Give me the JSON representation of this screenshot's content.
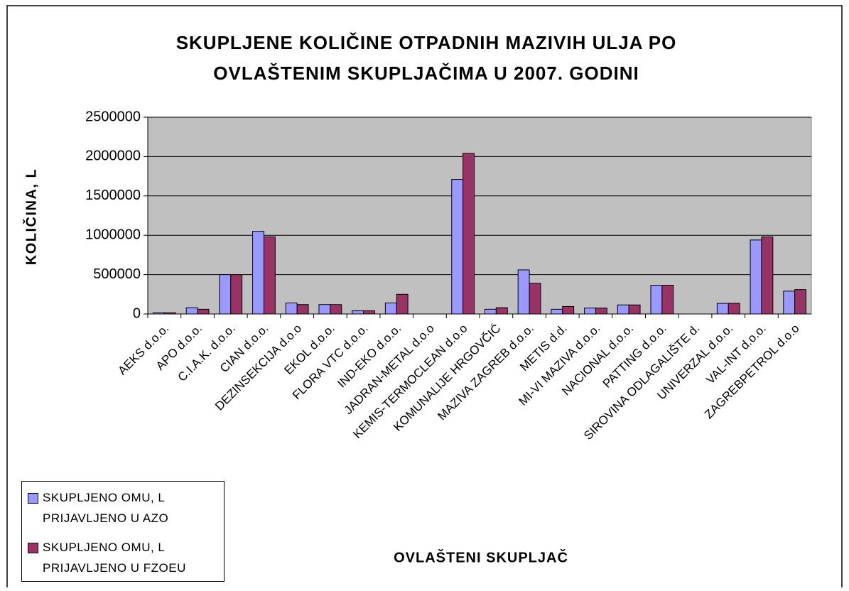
{
  "chart_data": {
    "type": "bar",
    "title": "SKUPLJENE KOLIČINE OTPADNIH MAZIVIH ULJA PO OVLAŠTENIM SKUPLJAČIMA U 2007. GODINI",
    "x_label": "OVLAŠTENI SKUPLJAČ",
    "y_label": "KOLIČINA, L",
    "categories": [
      "AEKS d.o.o.",
      "APO d.o.o.",
      "C.I.A.K. d.o.o.",
      "CIAN d.o.o.",
      "DEZINSEKCIJA d.o.o",
      "EKOL d.o.o.",
      "FLORA VTC d.o.o.",
      "IND-EKO d.o.o.",
      "JADRAN-METAL d.o.o",
      "KEMIS-TERMOCLEAN d.o.o",
      "KOMUNALIJE HRGOVČIĆ",
      "MAZIVA ZAGREB d.o.o.",
      "METIS d.d.",
      "MI-VI MAZIVA d.o.o.",
      "NACIONAL d.o.o.",
      "PATTING d.o.o.",
      "SIROVINA ODLAGALIŠTE d.",
      "UNIVERZAL d.o.o.",
      "VAL-INT d.o.o.",
      "ZAGREBPETROL d.o.o"
    ],
    "series": [
      {
        "name": "SKUPLJENO OMU, L PRIJAVLJENO U AZO",
        "color": "#9999ff",
        "values": [
          15000,
          80000,
          500000,
          1050000,
          140000,
          120000,
          40000,
          140000,
          0,
          1710000,
          60000,
          560000,
          60000,
          75000,
          115000,
          365000,
          0,
          135000,
          940000,
          290000
        ]
      },
      {
        "name": "SKUPLJENO OMU, L PRIJAVLJENO U FZOEU",
        "color": "#993366",
        "values": [
          15000,
          60000,
          500000,
          980000,
          120000,
          120000,
          40000,
          250000,
          0,
          2040000,
          80000,
          390000,
          95000,
          75000,
          115000,
          365000,
          0,
          135000,
          980000,
          310000
        ]
      }
    ],
    "ylim": [
      0,
      2500000
    ],
    "yticks": [
      0,
      500000,
      1000000,
      1500000,
      2000000,
      2500000
    ],
    "grid": true,
    "plot_background": "#c0c0c0"
  }
}
